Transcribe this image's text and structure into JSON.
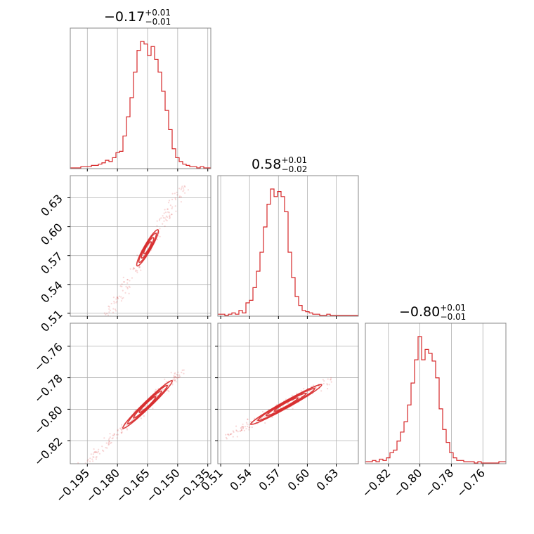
{
  "chart_data": {
    "type": "corner",
    "color": "#d62728",
    "grid": true,
    "params": [
      {
        "title": {
          "main": "−0.17",
          "sup": "+0.01",
          "sub": "−0.01"
        },
        "range": [
          -0.2035,
          -0.1335
        ],
        "ticks": [
          -0.195,
          -0.18,
          -0.165,
          -0.15,
          -0.135
        ],
        "tick_labels": [
          "−0.195",
          "−0.180",
          "−0.165",
          "−0.150",
          "−0.135"
        ]
      },
      {
        "title": {
          "main": "0.58",
          "sup": "+0.01",
          "sub": "−0.02"
        },
        "range": [
          0.507,
          0.653
        ],
        "ticks": [
          0.51,
          0.54,
          0.57,
          0.6,
          0.63
        ],
        "tick_labels": [
          "0.51",
          "0.54",
          "0.57",
          "0.60",
          "0.63"
        ]
      },
      {
        "title": {
          "main": "−0.80",
          "sup": "+0.01",
          "sub": "−0.01"
        },
        "range": [
          -0.8346,
          -0.7454
        ],
        "ticks": [
          -0.82,
          -0.8,
          -0.78,
          -0.76
        ],
        "tick_labels": [
          "−0.82",
          "−0.80",
          "−0.78",
          "−0.76"
        ]
      }
    ],
    "histograms": [
      {
        "bin_start": -0.2035,
        "bin_width": 0.00175,
        "counts": [
          0,
          0,
          0,
          1,
          1,
          1,
          2,
          2,
          3,
          4,
          6,
          5,
          8,
          12,
          13,
          25,
          40,
          55,
          75,
          92,
          99,
          97,
          88,
          95,
          85,
          75,
          60,
          45,
          30,
          15,
          8,
          5,
          3,
          2,
          1,
          1,
          0,
          1,
          0,
          0
        ]
      },
      {
        "bin_start": 0.507,
        "bin_width": 0.00365,
        "counts": [
          1,
          1,
          0,
          1,
          2,
          1,
          4,
          2,
          10,
          12,
          22,
          35,
          50,
          70,
          88,
          100,
          94,
          98,
          94,
          82,
          50,
          30,
          15,
          8,
          4,
          3,
          2,
          1,
          1,
          0,
          0,
          1,
          0,
          0,
          0,
          0,
          0,
          0,
          0,
          0
        ]
      },
      {
        "bin_start": -0.8346,
        "bin_width": 0.00223,
        "counts": [
          1,
          1,
          2,
          1,
          3,
          2,
          4,
          8,
          10,
          17,
          24,
          32,
          45,
          62,
          80,
          98,
          80,
          88,
          85,
          79,
          66,
          42,
          26,
          16,
          8,
          4,
          2,
          2,
          1,
          1,
          1,
          0,
          1,
          0,
          0,
          0,
          0,
          0,
          1,
          1
        ]
      }
    ],
    "pairs": [
      {
        "x_param": 0,
        "y_param": 1,
        "row": 1,
        "col": 0,
        "mean": [
          -0.165,
          0.578
        ],
        "slope": 3.62,
        "along_sd": 0.0065,
        "perp_sd": 0.0011,
        "samples_span": [
          -0.197,
          -0.147
        ]
      },
      {
        "x_param": 0,
        "y_param": 2,
        "row": 2,
        "col": 0,
        "mean": [
          -0.165,
          -0.797
        ],
        "slope": 1.23,
        "along_sd": 0.0065,
        "perp_sd": 0.0009,
        "samples_span": [
          -0.197,
          -0.147
        ]
      },
      {
        "x_param": 1,
        "y_param": 2,
        "row": 2,
        "col": 1,
        "mean": [
          0.578,
          -0.797
        ],
        "slope": 0.34,
        "along_sd": 0.013,
        "perp_sd": 0.0012,
        "samples_span": [
          0.515,
          0.625
        ]
      }
    ]
  }
}
